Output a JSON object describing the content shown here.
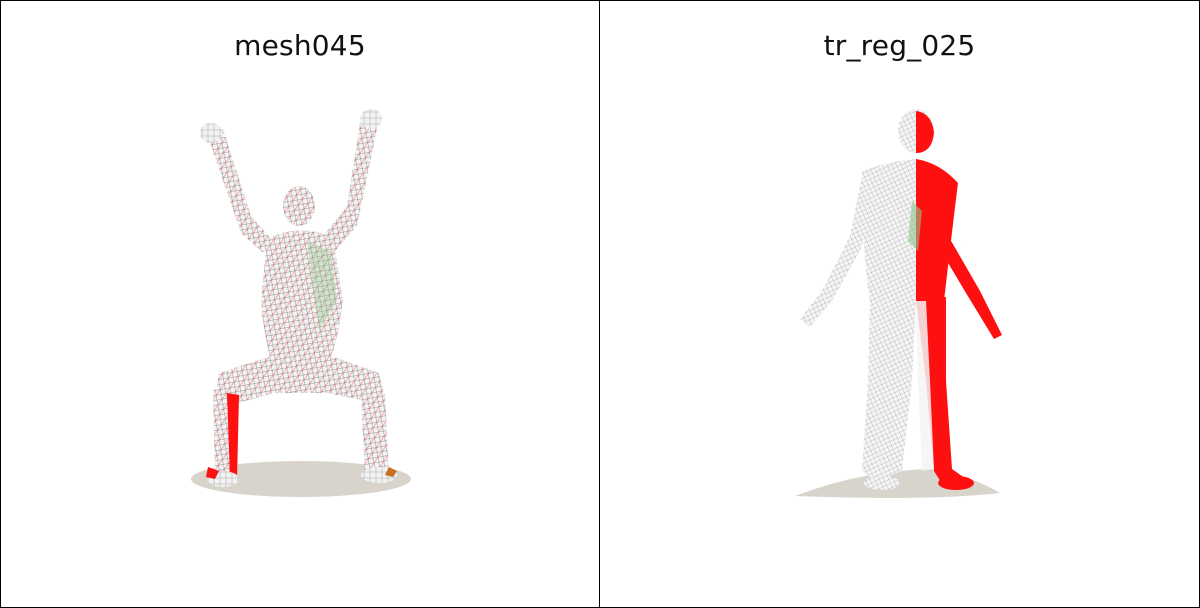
{
  "panels": [
    {
      "title": "mesh045"
    },
    {
      "title": "tr_reg_025"
    }
  ],
  "colors": {
    "highlight": "#ff1010",
    "mesh_line": "#9a9a9a",
    "surface": "#f2f2f2",
    "accent_green": "#8fc58a",
    "shadow": "#d8d4cc"
  }
}
